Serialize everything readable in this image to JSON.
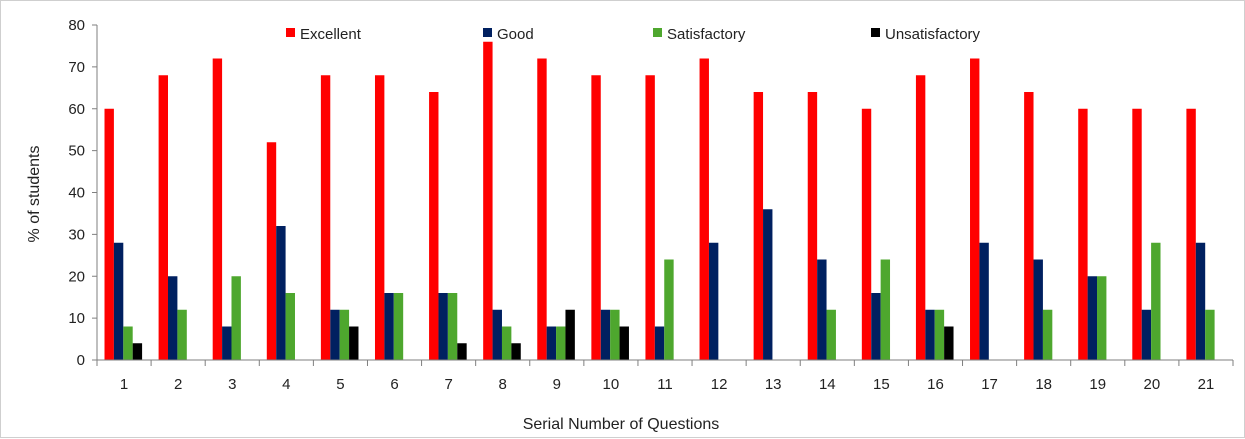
{
  "chart_data": {
    "type": "bar",
    "title": "",
    "xlabel": "Serial Number of Questions",
    "ylabel": "% of students",
    "ylim": [
      0,
      80
    ],
    "yticks": [
      0,
      10,
      20,
      30,
      40,
      50,
      60,
      70,
      80
    ],
    "grid": false,
    "legend_position": "top",
    "categories": [
      "1",
      "2",
      "3",
      "4",
      "5",
      "6",
      "7",
      "8",
      "9",
      "10",
      "11",
      "12",
      "13",
      "14",
      "15",
      "16",
      "17",
      "18",
      "19",
      "20",
      "21"
    ],
    "series": [
      {
        "name": "Excellent",
        "color": "#ff0000",
        "values": [
          60,
          68,
          72,
          52,
          68,
          68,
          64,
          76,
          72,
          68,
          68,
          72,
          64,
          64,
          60,
          68,
          72,
          64,
          60,
          60,
          60
        ]
      },
      {
        "name": "Good",
        "color": "#002060",
        "values": [
          28,
          20,
          8,
          32,
          12,
          16,
          16,
          12,
          8,
          12,
          8,
          28,
          36,
          24,
          16,
          12,
          28,
          24,
          20,
          12,
          28
        ]
      },
      {
        "name": "Satisfactory",
        "color": "#4ea72e",
        "values": [
          8,
          12,
          20,
          16,
          12,
          16,
          16,
          8,
          8,
          12,
          24,
          0,
          0,
          12,
          24,
          12,
          0,
          12,
          20,
          28,
          12
        ]
      },
      {
        "name": "Unsatisfactory",
        "color": "#000000",
        "values": [
          4,
          0,
          0,
          0,
          8,
          0,
          4,
          4,
          12,
          8,
          0,
          0,
          0,
          0,
          0,
          8,
          0,
          0,
          0,
          0,
          0
        ]
      }
    ]
  }
}
